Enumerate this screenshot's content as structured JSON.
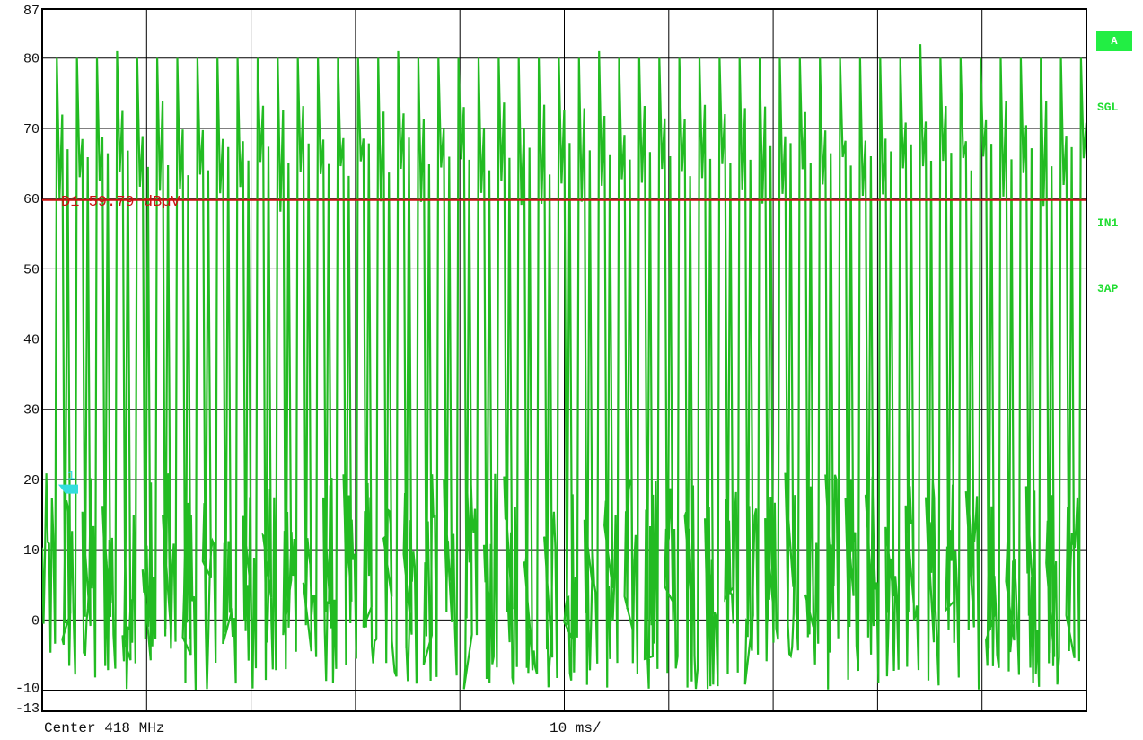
{
  "chart_data": {
    "type": "line",
    "title": "",
    "xlabel": "",
    "ylabel": "",
    "ylim": [
      -13,
      87
    ],
    "y_ticks": [
      87,
      80,
      70,
      60,
      50,
      40,
      30,
      20,
      10,
      0,
      -10,
      -13
    ],
    "x_divisions": 10,
    "grid": true,
    "center_label": "Center 418 MHz",
    "span_label": "10 ms/",
    "display_line": {
      "label": "D1 59.79 dBµV",
      "value": 59.79,
      "color": "#cc1111"
    },
    "trace_marker": {
      "label": "1",
      "value": 18.5,
      "color": "#33dddd"
    },
    "series": [
      {
        "color": "#22bb22",
        "burst_count": 52,
        "burst_peak_values": [
          80,
          80,
          80,
          81,
          80,
          80,
          80,
          80,
          80,
          80,
          80,
          80,
          80,
          80,
          80,
          80,
          80,
          81,
          80,
          80,
          80,
          80,
          80,
          80,
          80,
          80,
          80,
          81,
          80,
          80,
          80,
          80,
          80,
          80,
          80,
          80,
          80,
          80,
          80,
          80,
          80,
          80,
          80,
          82,
          80,
          80,
          80,
          80,
          80,
          80,
          80,
          80
        ],
        "noise_floor_range": [
          -10,
          21
        ]
      }
    ]
  },
  "side": {
    "trace_label": "A",
    "mode": "SGL",
    "input": "IN1",
    "detector": "3AP"
  },
  "colors": {
    "grid": "#000000",
    "trace": "#22bb22",
    "badge": "#22ee44",
    "side_text": "#22dd33"
  }
}
